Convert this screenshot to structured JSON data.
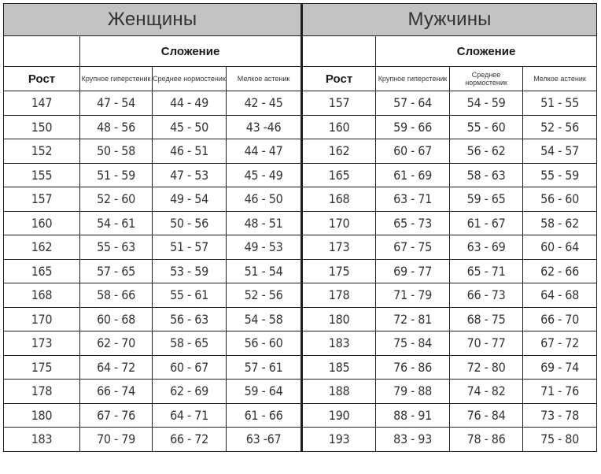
{
  "women": {
    "title": "Женщины",
    "build_label": "Сложение",
    "height_label": "Рост",
    "types": [
      "Крупное гиперстеник",
      "Среднее нормостеник",
      "Мелкое астеник"
    ],
    "rows": [
      [
        "147",
        "47 - 54",
        "44 - 49",
        "42 - 45"
      ],
      [
        "150",
        "48 - 56",
        "45 - 50",
        "43 -46"
      ],
      [
        "152",
        "50 - 58",
        "46 - 51",
        "44 - 47"
      ],
      [
        "155",
        "51 - 59",
        "47 - 53",
        "45 - 49"
      ],
      [
        "157",
        "52 - 60",
        "49 - 54",
        "46 - 50"
      ],
      [
        "160",
        "54 - 61",
        "50 - 56",
        "48 - 51"
      ],
      [
        "162",
        "55 - 63",
        "51 - 57",
        "49 - 53"
      ],
      [
        "165",
        "57 - 65",
        "53 - 59",
        "51 - 54"
      ],
      [
        "168",
        "58 - 66",
        "55 - 61",
        "52 - 56"
      ],
      [
        "170",
        "60 - 68",
        "56 - 63",
        "54 - 58"
      ],
      [
        "173",
        "62 - 70",
        "58 - 65",
        "56 - 60"
      ],
      [
        "175",
        "64 - 72",
        "60 - 67",
        "57 - 61"
      ],
      [
        "178",
        "66 - 74",
        "62 - 69",
        "59 - 64"
      ],
      [
        "180",
        "67 - 76",
        "64 - 71",
        "61 - 66"
      ],
      [
        "183",
        "70 - 79",
        "66 - 72",
        "63 -67"
      ]
    ]
  },
  "men": {
    "title": "Мужчины",
    "build_label": "Сложение",
    "height_label": "Рост",
    "types": [
      "Крупное гиперстеник",
      "Среднее нормостеник",
      "Мелкое астеник"
    ],
    "rows": [
      [
        "157",
        "57 - 64",
        "54 - 59",
        "51 - 55"
      ],
      [
        "160",
        "59 - 66",
        "55 - 60",
        "52 - 56"
      ],
      [
        "162",
        "60 - 67",
        "56 - 62",
        "54 - 57"
      ],
      [
        "165",
        "61 - 69",
        "58 - 63",
        "55 - 59"
      ],
      [
        "168",
        "63 - 71",
        "59 - 65",
        "56 - 60"
      ],
      [
        "170",
        "65 - 73",
        "61 - 67",
        "58 - 62"
      ],
      [
        "173",
        "67 - 75",
        "63 - 69",
        "60 - 64"
      ],
      [
        "175",
        "69 - 77",
        "65 - 71",
        "62 - 66"
      ],
      [
        "178",
        "71 - 79",
        "66 - 73",
        "64 - 68"
      ],
      [
        "180",
        "72 - 81",
        "68 - 75",
        "66 - 70"
      ],
      [
        "183",
        "75 - 84",
        "70 - 77",
        "67 - 72"
      ],
      [
        "185",
        "76 - 86",
        "72 - 80",
        "69 - 74"
      ],
      [
        "188",
        "79 - 88",
        "74 - 82",
        "71 - 76"
      ],
      [
        "190",
        "88 - 91",
        "76 - 84",
        "73 - 78"
      ],
      [
        "193",
        "83 - 93",
        "78 - 86",
        "75 - 80"
      ]
    ]
  },
  "colors": {
    "header_bg": "#c3c3c3",
    "border": "#1e1e1e",
    "text": "#333333"
  }
}
